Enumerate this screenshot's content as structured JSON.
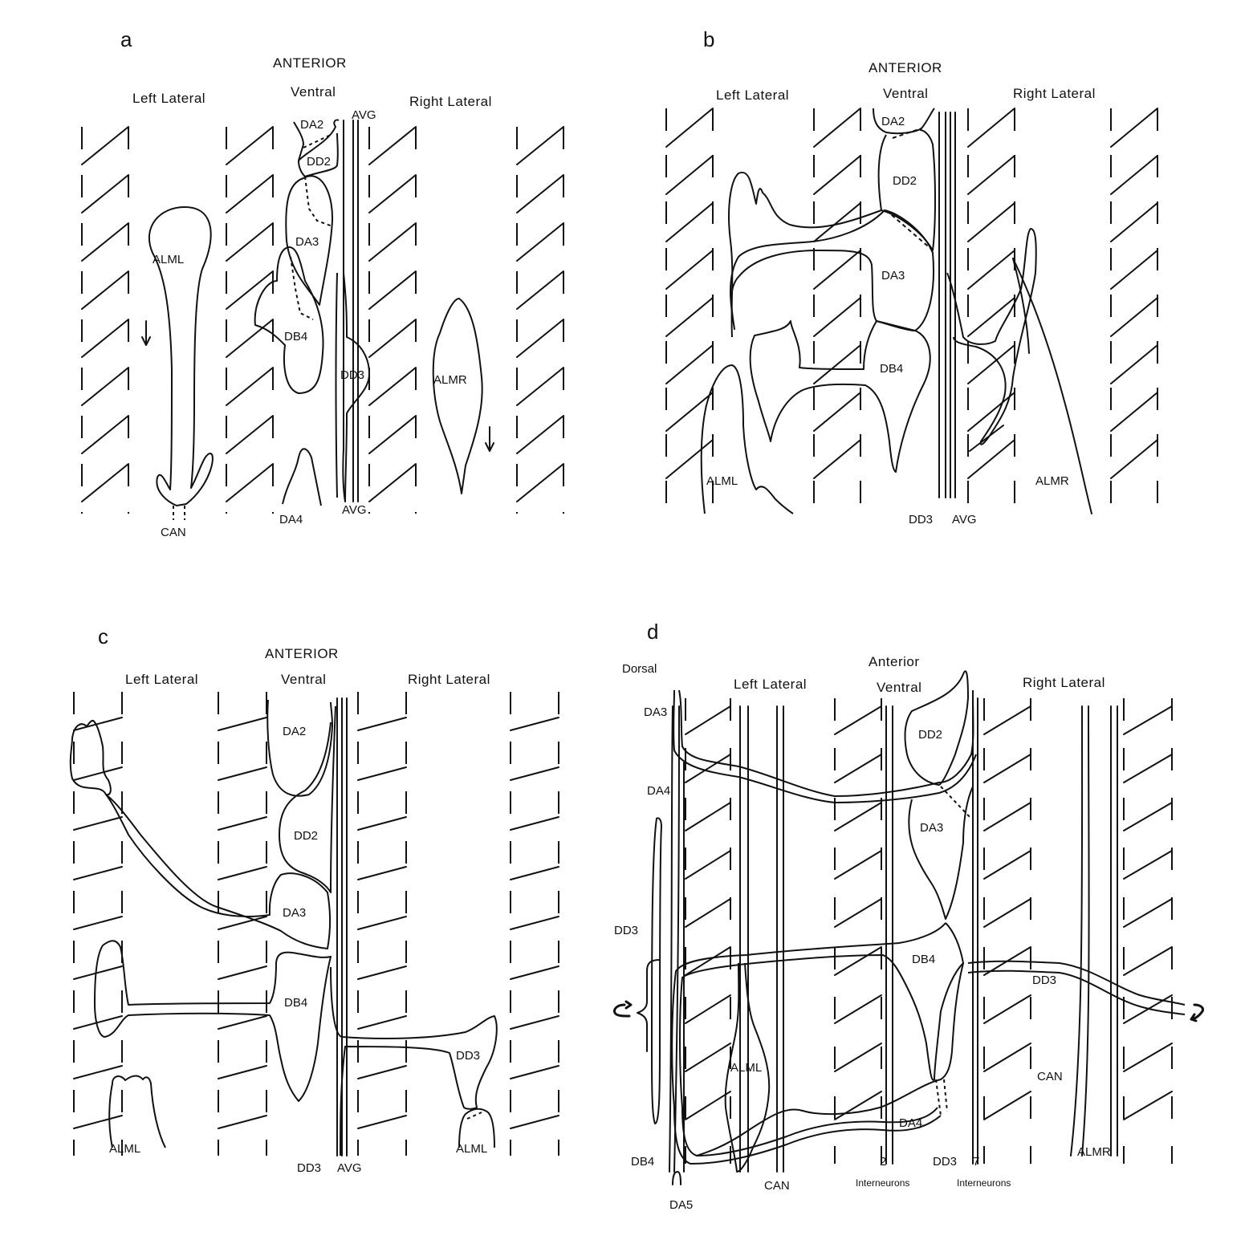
{
  "panels": [
    {
      "letter": "a",
      "anterior": "ANTERIOR",
      "regions": [
        "Left Lateral",
        "Ventral",
        "Right Lateral"
      ],
      "cells": [
        "ALML",
        "DA2",
        "DD2",
        "DA3",
        "DB4",
        "DD3",
        "ALMR",
        "DA4",
        "CAN"
      ],
      "processes": [
        "AVG",
        "AVG"
      ]
    },
    {
      "letter": "b",
      "anterior": "ANTERIOR",
      "regions": [
        "Left Lateral",
        "Ventral",
        "Right Lateral"
      ],
      "cells": [
        "DA2",
        "DD2",
        "DA3",
        "DB4",
        "ALML",
        "ALMR"
      ],
      "processes": [
        "DD3",
        "AVG"
      ]
    },
    {
      "letter": "c",
      "anterior": "ANTERIOR",
      "regions": [
        "Left Lateral",
        "Ventral",
        "Right Lateral"
      ],
      "cells": [
        "DA2",
        "DD2",
        "DA3",
        "DB4",
        "DD3",
        "ALML",
        "ALML"
      ],
      "processes": [
        "DD3",
        "AVG"
      ]
    },
    {
      "letter": "d",
      "anterior": "Anterior",
      "dorsal": "Dorsal",
      "regions": [
        "Left Lateral",
        "Ventral",
        "Right Lateral"
      ],
      "cells": [
        "DA3",
        "DA4",
        "DD3",
        "DB4",
        "DA5",
        "ALML",
        "CAN",
        "DD2",
        "DA3",
        "DB4",
        "DA4",
        "DD3",
        "DD3",
        "CAN",
        "ALMR"
      ],
      "bundles": [
        {
          "count": "2",
          "label": "Interneurons"
        },
        {
          "count": "7",
          "label": "Interneurons"
        }
      ]
    }
  ]
}
